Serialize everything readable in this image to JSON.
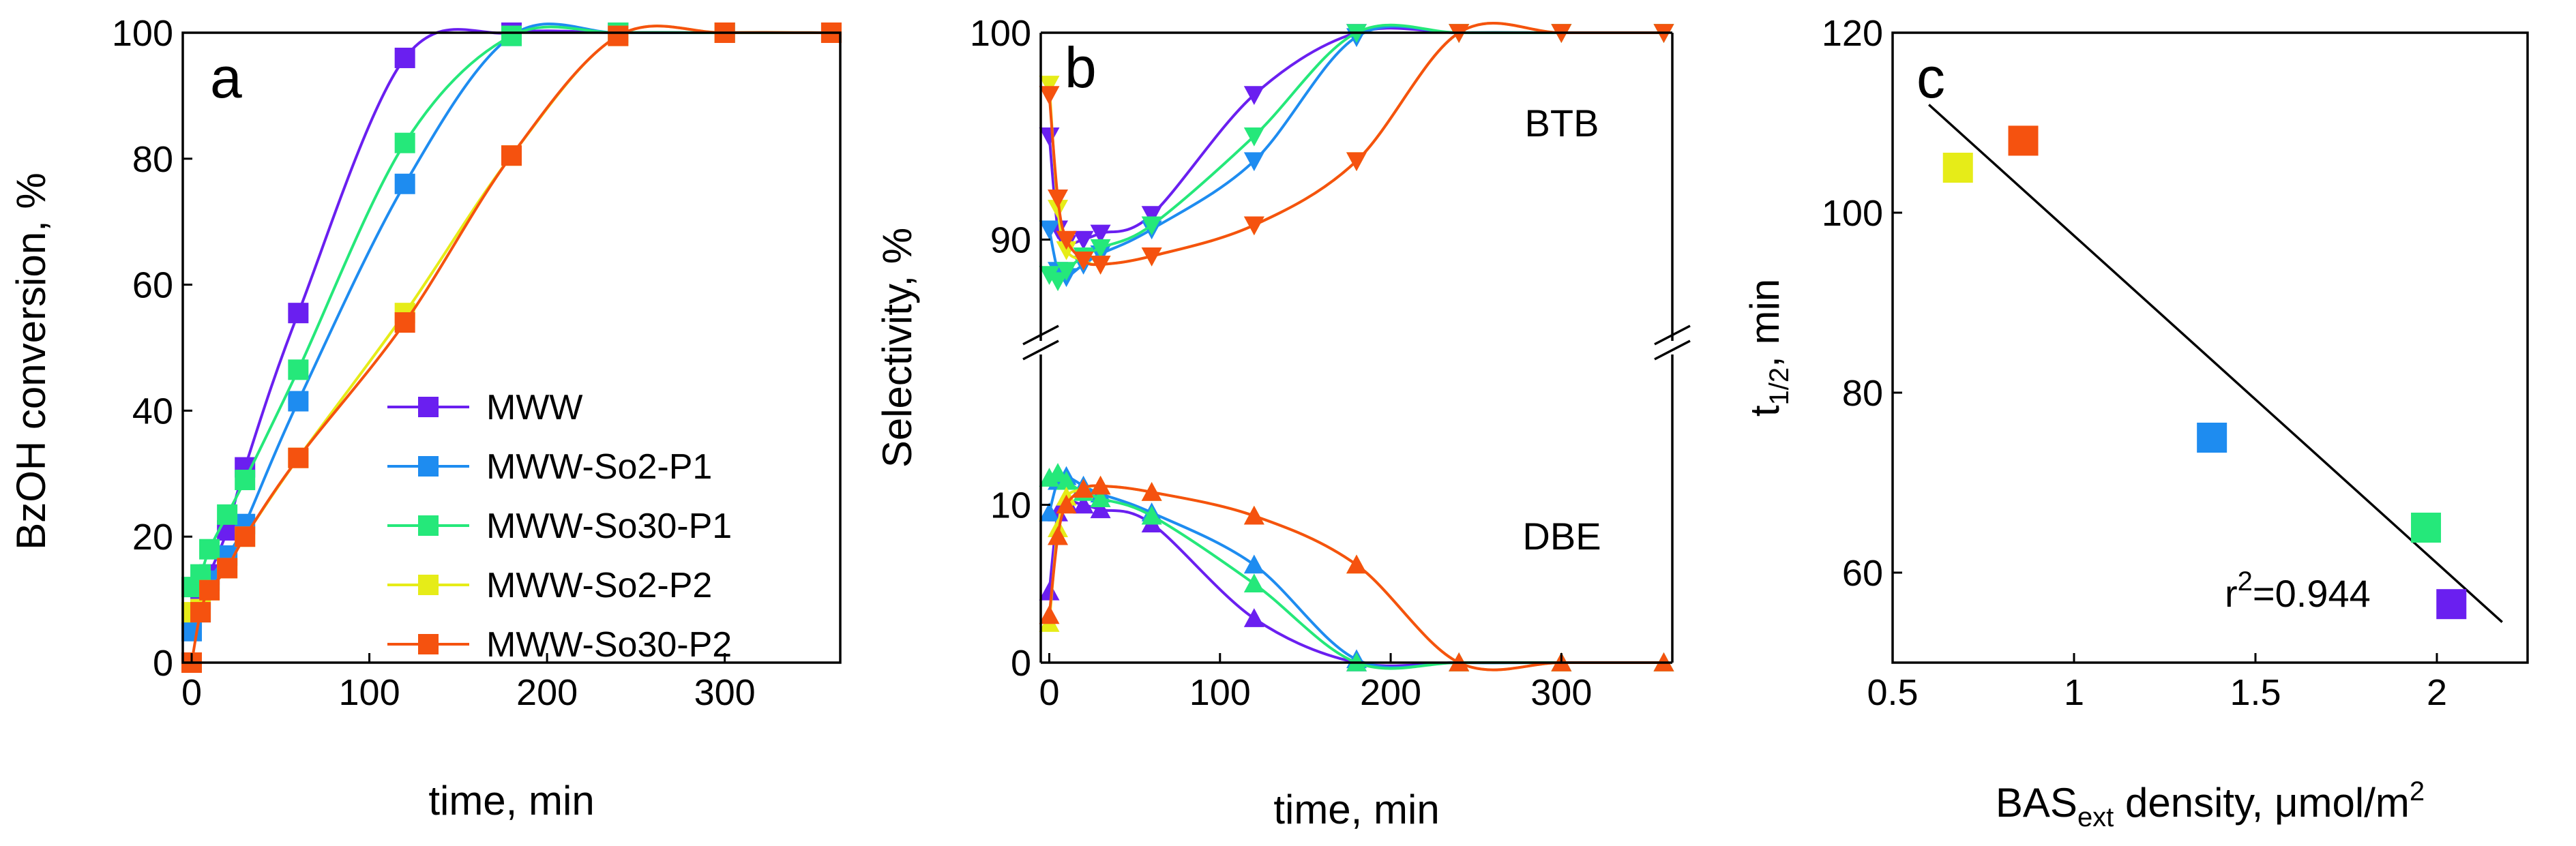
{
  "colors": {
    "MWW": "#6a1ff0",
    "MWW-So2-P1": "#1e8cf0",
    "MWW-So30-P1": "#25e87a",
    "MWW-So2-P2": "#e6ec18",
    "MWW-So30-P2": "#f5520f"
  },
  "chart_data": [
    {
      "panel": "a",
      "type": "line",
      "xlabel": "time, min",
      "ylabel": "BzOH conversion, %",
      "xlim": [
        -5,
        365
      ],
      "ylim": [
        0,
        100
      ],
      "xticks": [
        0,
        100,
        200,
        300
      ],
      "yticks": [
        0,
        20,
        40,
        60,
        80,
        100
      ],
      "legend": {
        "placement": "bottom-right",
        "entries": [
          "MWW",
          "MWW-So2-P1",
          "MWW-So30-P1",
          "MWW-So2-P2",
          "MWW-So30-P2"
        ]
      },
      "marker": "square",
      "series": [
        {
          "name": "MWW",
          "x": [
            0,
            5,
            10,
            20,
            30,
            60,
            120,
            180,
            240,
            300,
            360
          ],
          "y": [
            7,
            10,
            14,
            21,
            31,
            55.5,
            96,
            100,
            100,
            100,
            100
          ]
        },
        {
          "name": "MWW-So2-P1",
          "x": [
            0,
            5,
            10,
            20,
            30,
            60,
            120,
            180,
            240,
            300,
            360
          ],
          "y": [
            5,
            8,
            13,
            17,
            22,
            41.5,
            76,
            99.5,
            100,
            100,
            100
          ]
        },
        {
          "name": "MWW-So30-P1",
          "x": [
            0,
            5,
            10,
            20,
            30,
            60,
            120,
            180,
            240,
            300,
            360
          ],
          "y": [
            12,
            14,
            18,
            23.5,
            29,
            46.5,
            82.5,
            99.5,
            100,
            100,
            100
          ]
        },
        {
          "name": "MWW-So2-P2",
          "x": [
            0,
            5,
            10,
            20,
            30,
            60,
            120,
            180,
            240,
            300,
            360
          ],
          "y": [
            8,
            8.5,
            11.5,
            15,
            20,
            32.5,
            55.5,
            80.5,
            99.5,
            100,
            100
          ]
        },
        {
          "name": "MWW-So30-P2",
          "x": [
            0,
            5,
            10,
            20,
            30,
            60,
            120,
            180,
            240,
            300,
            360
          ],
          "y": [
            0,
            8,
            11.5,
            15,
            20,
            32.5,
            54,
            80.5,
            99.5,
            100,
            100
          ]
        }
      ]
    },
    {
      "panel": "b",
      "type": "line",
      "xlabel": "time, min",
      "ylabel": "Selectivity, %",
      "xlim": [
        -5,
        365
      ],
      "axis_break": true,
      "ylim_upper": [
        85.5,
        100
      ],
      "ylim_lower": [
        0,
        16.5
      ],
      "yticks_upper": [
        90,
        100
      ],
      "yticks_lower": [
        0,
        10
      ],
      "xticks": [
        0,
        100,
        200,
        300
      ],
      "annotations": [
        "BTB",
        "DBE"
      ],
      "BTB": {
        "marker": "triangle-down",
        "series": [
          {
            "name": "MWW",
            "x": [
              0,
              5,
              10,
              20,
              30,
              60,
              120,
              180,
              240,
              300,
              360
            ],
            "y": [
              95,
              90.5,
              89.8,
              90,
              90.3,
              91.2,
              97,
              100,
              100,
              100,
              100
            ]
          },
          {
            "name": "MWW-So2-P1",
            "x": [
              0,
              5,
              10,
              20,
              30,
              60,
              120,
              180,
              240,
              300,
              360
            ],
            "y": [
              90.5,
              88.5,
              88.2,
              88.8,
              89.3,
              90.5,
              93.8,
              99.8,
              100,
              100,
              100
            ]
          },
          {
            "name": "MWW-So30-P1",
            "x": [
              0,
              5,
              10,
              20,
              30,
              60,
              120,
              180,
              240,
              300,
              360
            ],
            "y": [
              88.3,
              88,
              88.5,
              89.2,
              89.6,
              90.7,
              95,
              100,
              100,
              100,
              100
            ]
          },
          {
            "name": "MWW-So2-P2",
            "x": [
              0,
              5,
              10,
              20,
              30,
              60,
              120,
              180,
              240,
              300,
              360
            ],
            "y": [
              97.5,
              91.5,
              89.5,
              89,
              88.8,
              89.2,
              90.7,
              93.8,
              100,
              100,
              100
            ]
          },
          {
            "name": "MWW-So30-P2",
            "x": [
              0,
              5,
              10,
              20,
              30,
              60,
              120,
              180,
              240,
              300,
              360
            ],
            "y": [
              97,
              92,
              90,
              89,
              88.8,
              89.2,
              90.7,
              93.8,
              100,
              100,
              100
            ]
          }
        ]
      },
      "DBE": {
        "marker": "triangle-up",
        "series": [
          {
            "name": "MWW",
            "x": [
              0,
              5,
              10,
              20,
              30,
              60,
              120,
              180,
              240,
              300,
              360
            ],
            "y": [
              4.5,
              9.5,
              10.2,
              10,
              9.7,
              8.8,
              2.8,
              0,
              0,
              0,
              0
            ]
          },
          {
            "name": "MWW-So2-P1",
            "x": [
              0,
              5,
              10,
              20,
              30,
              60,
              120,
              180,
              240,
              300,
              360
            ],
            "y": [
              9.5,
              11.5,
              11.8,
              11.2,
              10.7,
              9.5,
              6.2,
              0.2,
              0,
              0,
              0
            ]
          },
          {
            "name": "MWW-So30-P1",
            "x": [
              0,
              5,
              10,
              20,
              30,
              60,
              120,
              180,
              240,
              300,
              360
            ],
            "y": [
              11.7,
              12,
              11.5,
              10.8,
              10.4,
              9.3,
              5,
              0,
              0,
              0,
              0
            ]
          },
          {
            "name": "MWW-So2-P2",
            "x": [
              0,
              5,
              10,
              20,
              30,
              60,
              120,
              180,
              240,
              300,
              360
            ],
            "y": [
              2.5,
              8.5,
              10.5,
              11,
              11.2,
              10.8,
              9.3,
              6.2,
              0,
              0,
              0
            ]
          },
          {
            "name": "MWW-So30-P2",
            "x": [
              0,
              5,
              10,
              20,
              30,
              60,
              120,
              180,
              240,
              300,
              360
            ],
            "y": [
              3,
              8,
              10,
              11,
              11.2,
              10.8,
              9.3,
              6.2,
              0,
              0,
              0
            ]
          }
        ]
      }
    },
    {
      "panel": "c",
      "type": "scatter",
      "xlabel": {
        "main": "BAS",
        "sub": "ext",
        "rest": " density, μmol/m",
        "sup": "2"
      },
      "ylabel": {
        "main": "t",
        "sub": "1/2",
        "rest": ", min"
      },
      "xlim": [
        0.5,
        2.25
      ],
      "ylim": [
        50,
        120
      ],
      "xticks": [
        0.5,
        1,
        1.5,
        2
      ],
      "yticks": [
        60,
        80,
        100,
        120
      ],
      "marker": "square",
      "points": [
        {
          "name": "MWW",
          "x": 2.04,
          "y": 56.5
        },
        {
          "name": "MWW-So2-P1",
          "x": 1.38,
          "y": 75
        },
        {
          "name": "MWW-So30-P1",
          "x": 1.97,
          "y": 65
        },
        {
          "name": "MWW-So2-P2",
          "x": 0.68,
          "y": 105
        },
        {
          "name": "MWW-So30-P2",
          "x": 0.86,
          "y": 108
        }
      ],
      "fit_line": {
        "x": [
          0.6,
          2.18
        ],
        "y": [
          112,
          54.5
        ]
      },
      "annotation": {
        "main": "r",
        "sup": "2",
        "rest": "=0.944"
      }
    }
  ]
}
